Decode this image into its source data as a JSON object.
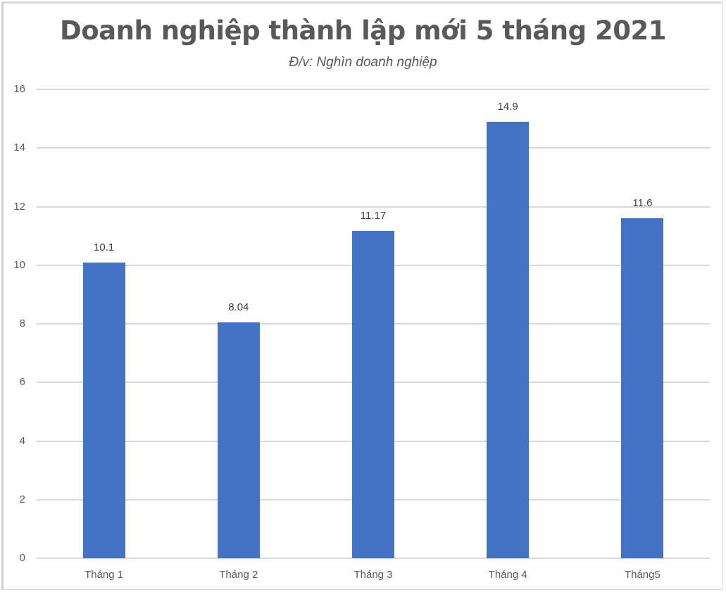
{
  "chart_data": {
    "type": "bar",
    "title": "Doanh nghiệp thành lập mới 5 tháng 2021",
    "subtitle": "Đ/v: Nghìn doanh nghiệp",
    "categories": [
      "Tháng 1",
      "Tháng 2",
      "Tháng 3",
      "Tháng 4",
      "Tháng5"
    ],
    "values": [
      10.1,
      8.04,
      11.17,
      14.9,
      11.6
    ],
    "data_labels": [
      "10.1",
      "8.04",
      "11.17",
      "14.9",
      "11.6"
    ],
    "xlabel": "",
    "ylabel": "",
    "ylim": [
      0,
      16
    ],
    "yticks": [
      "0",
      "2",
      "4",
      "6",
      "8",
      "10",
      "12",
      "14",
      "16"
    ],
    "grid": true,
    "legend": "none",
    "bar_color": "#4472c4"
  }
}
